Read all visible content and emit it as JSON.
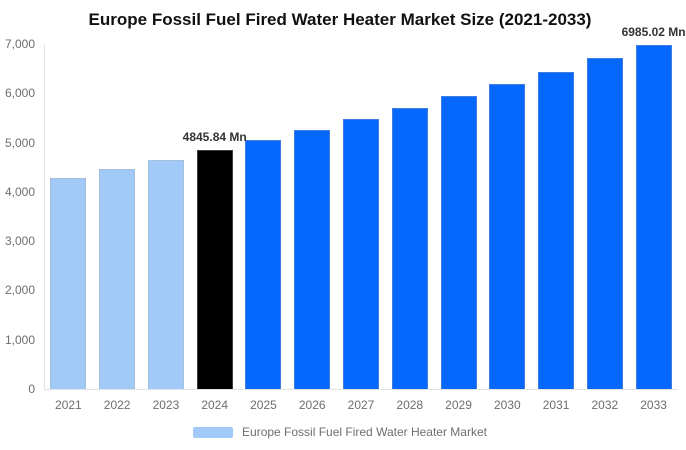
{
  "title": "Europe Fossil Fuel Fired Water Heater Market Size (2021-2033)",
  "legend": {
    "label": "Europe Fossil Fuel Fired Water Heater Market"
  },
  "colors": {
    "historical_bar": "#a1caf9",
    "base_year_bar": "#000000",
    "forecast_bar": "#0567fc",
    "axis_text": "#6e6e6e",
    "data_label_text": "#333333",
    "axis_line": "#e3e3e3",
    "title_text": "#111111"
  },
  "chart_data": {
    "type": "bar",
    "title": "Europe Fossil Fuel Fired Water Heater Market Size (2021-2033)",
    "xlabel": "",
    "ylabel": "",
    "unit": "Mn",
    "categories": [
      "2021",
      "2022",
      "2023",
      "2024",
      "2025",
      "2026",
      "2027",
      "2028",
      "2029",
      "2030",
      "2031",
      "2032",
      "2033"
    ],
    "values": [
      4290,
      4468,
      4653,
      4845.84,
      5047,
      5256,
      5474,
      5701,
      5938,
      6184,
      6440,
      6707,
      6985.02
    ],
    "bar_colors": [
      "#a1caf9",
      "#a1caf9",
      "#a1caf9",
      "#000000",
      "#0567fc",
      "#0567fc",
      "#0567fc",
      "#0567fc",
      "#0567fc",
      "#0567fc",
      "#0567fc",
      "#0567fc",
      "#0567fc"
    ],
    "ylim": [
      0,
      7000
    ],
    "y_ticks": [
      "0",
      "1,000",
      "2,000",
      "3,000",
      "4,000",
      "5,000",
      "6,000",
      "7,000"
    ],
    "grid": false,
    "legend_position": "bottom",
    "data_labels": [
      {
        "index": 3,
        "text": "4845.84 Mn"
      },
      {
        "index": 12,
        "text": "6985.02 Mn"
      }
    ]
  }
}
